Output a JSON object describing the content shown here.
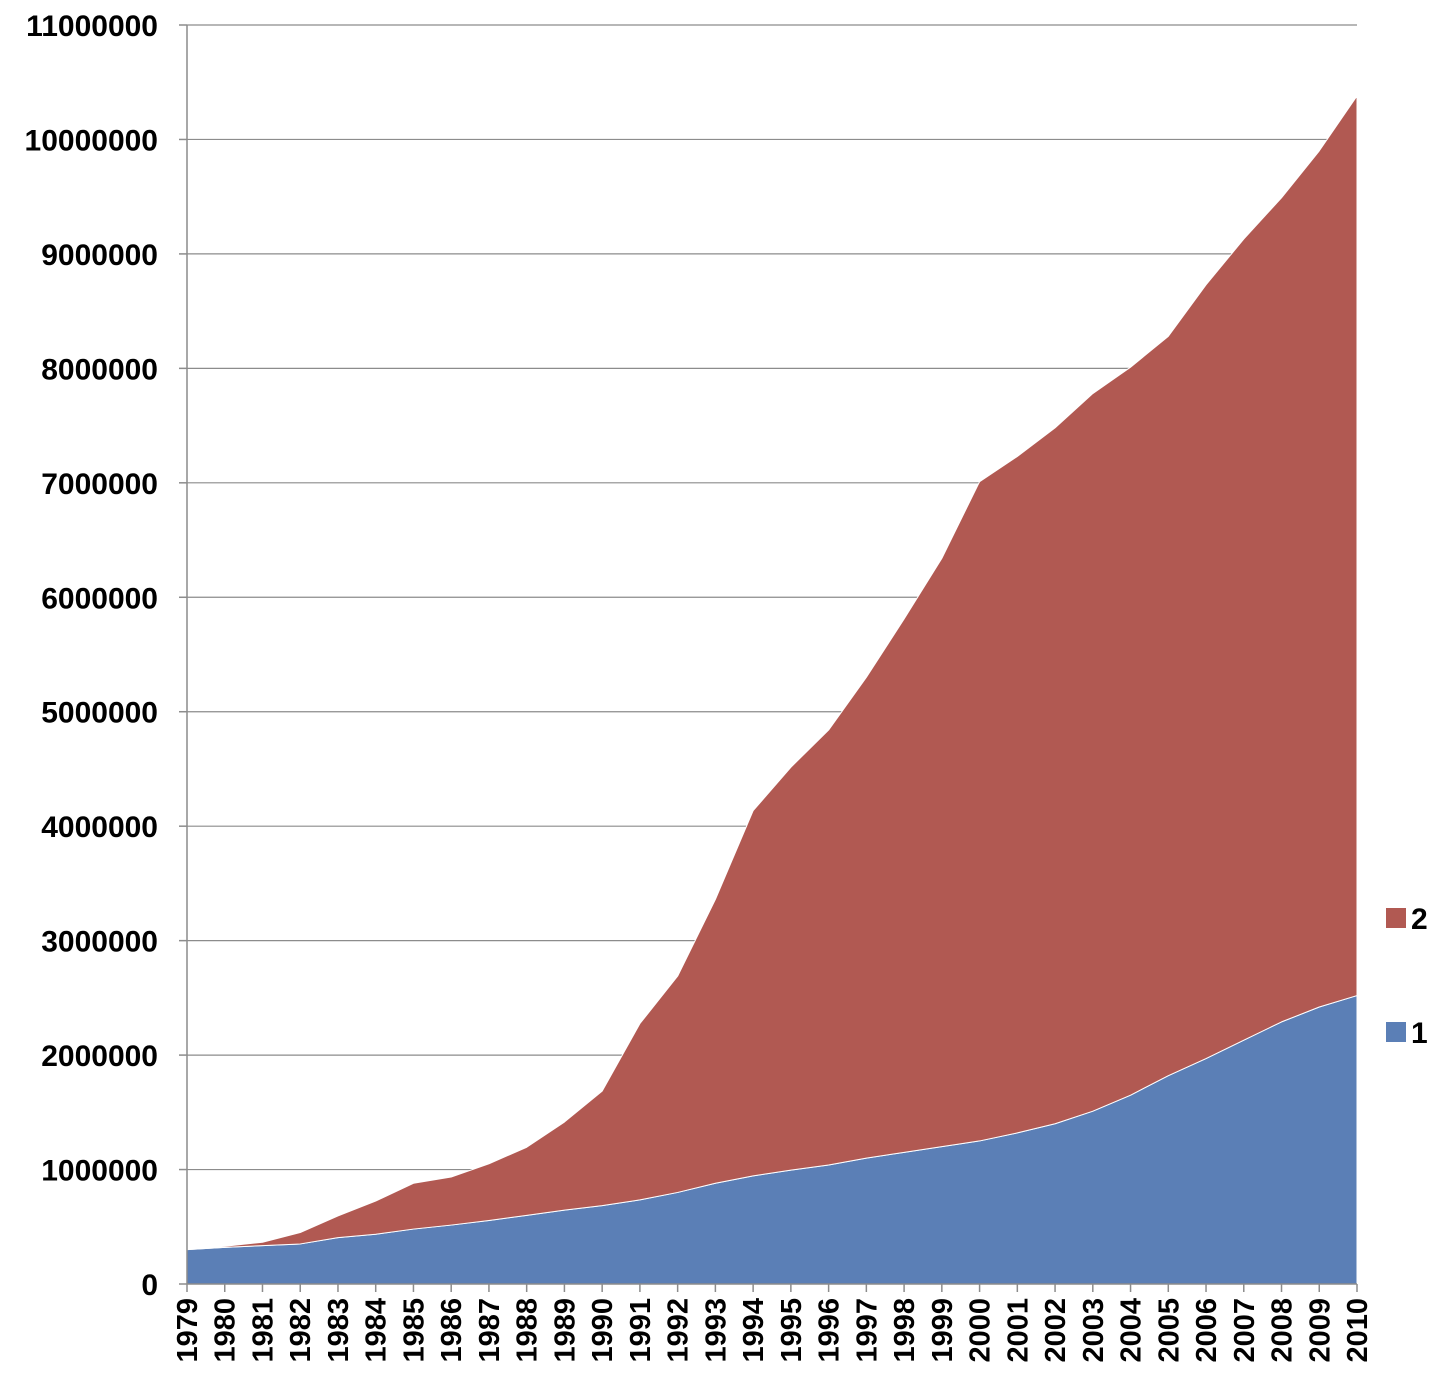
{
  "chart_data": {
    "type": "area",
    "stacked": true,
    "categories": [
      "1979",
      "1980",
      "1981",
      "1982",
      "1983",
      "1984",
      "1985",
      "1986",
      "1987",
      "1988",
      "1989",
      "1990",
      "1991",
      "1992",
      "1993",
      "1994",
      "1995",
      "1996",
      "1997",
      "1998",
      "1999",
      "2000",
      "2001",
      "2002",
      "2003",
      "2004",
      "2005",
      "2006",
      "2007",
      "2008",
      "2009",
      "2010"
    ],
    "series": [
      {
        "name": "1",
        "color": "#5b7fb6",
        "values": [
          300000,
          320000,
          335000,
          350000,
          405000,
          435000,
          480000,
          515000,
          555000,
          600000,
          645000,
          685000,
          735000,
          800000,
          880000,
          945000,
          995000,
          1040000,
          1100000,
          1150000,
          1200000,
          1250000,
          1320000,
          1400000,
          1510000,
          1650000,
          1820000,
          1970000,
          2130000,
          2290000,
          2420000,
          2520000
        ]
      },
      {
        "name": "2",
        "color": "#b15952",
        "values": [
          0,
          10000,
          30000,
          100000,
          190000,
          290000,
          400000,
          420000,
          495000,
          595000,
          770000,
          1000000,
          1540000,
          1890000,
          2480000,
          3190000,
          3520000,
          3800000,
          4200000,
          4660000,
          5140000,
          5760000,
          5910000,
          6080000,
          6270000,
          6360000,
          6460000,
          6760000,
          7000000,
          7200000,
          7480000,
          7860000
        ]
      }
    ],
    "ylim": [
      0,
      11000000
    ],
    "yticks": [
      "0",
      "1000000",
      "2000000",
      "3000000",
      "4000000",
      "5000000",
      "6000000",
      "7000000",
      "8000000",
      "9000000",
      "10000000",
      "11000000"
    ],
    "grid": true,
    "legend_position": "right"
  }
}
